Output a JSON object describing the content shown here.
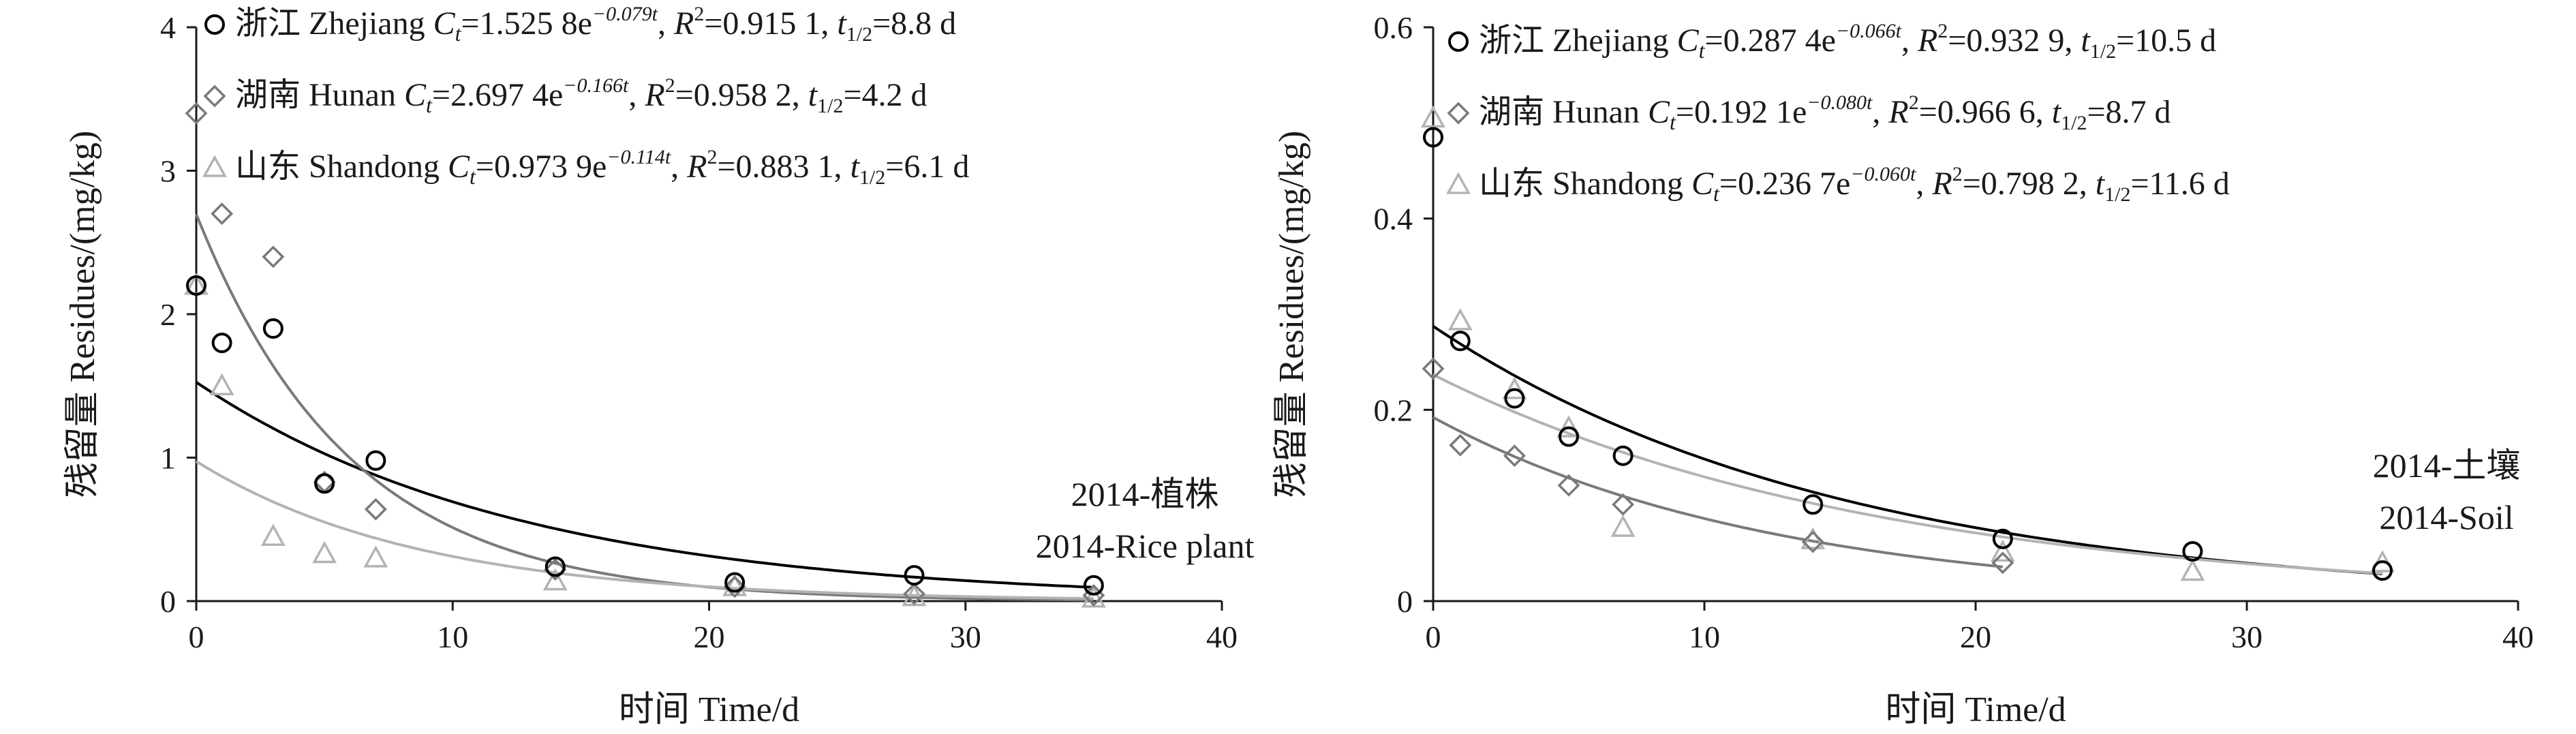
{
  "colors": {
    "zhejiang": "#000000",
    "hunan": "#7a7a7a",
    "shandong": "#b3b3b3",
    "axis": "#1a1a1a"
  },
  "chart_data": [
    {
      "type": "scatter",
      "annotation": [
        "2014-植株",
        "2014-Rice plant"
      ],
      "xlabel": "时间 Time/d",
      "ylabel": "残留量 Residues/(mg/kg)",
      "xlim": [
        0,
        40
      ],
      "ylim": [
        0,
        4
      ],
      "xticks": [
        "0",
        "10",
        "20",
        "30",
        "40"
      ],
      "yticks": [
        "0",
        "1",
        "2",
        "3",
        "4"
      ],
      "grid": false,
      "legend_position": "top-left",
      "series": [
        {
          "key": "zhejiang",
          "marker": "circle",
          "legend": {
            "name": "浙江 Zhejiang",
            "eq": "=1.525 8e",
            "exp": "−0.079t",
            "r2": "=0.915 1,",
            "half": "=8.8 d"
          },
          "fit": {
            "a": 1.5258,
            "k": 0.079
          },
          "x": [
            0,
            1,
            3,
            5,
            7,
            14,
            21,
            28,
            35
          ],
          "y": [
            2.2,
            1.8,
            1.9,
            0.82,
            0.98,
            0.24,
            0.13,
            0.18,
            0.11
          ]
        },
        {
          "key": "hunan",
          "marker": "diamond",
          "legend": {
            "name": "湖南 Hunan",
            "eq": "=2.697 4e",
            "exp": "−0.166t",
            "r2": "=0.958 2,",
            "half": "=4.2 d"
          },
          "fit": {
            "a": 2.6974,
            "k": 0.166
          },
          "x": [
            0,
            1,
            3,
            5,
            7,
            14,
            21,
            28,
            35
          ],
          "y": [
            3.4,
            2.7,
            2.4,
            0.83,
            0.64,
            0.22,
            0.1,
            0.05,
            0.04
          ]
        },
        {
          "key": "shandong",
          "marker": "triangle",
          "legend": {
            "name": "山东 Shandong",
            "eq": "=0.973 9e",
            "exp": "−0.114t",
            "r2": "=0.883 1,",
            "half": "=6.1 d"
          },
          "fit": {
            "a": 0.9739,
            "k": 0.114
          },
          "x": [
            0,
            1,
            3,
            5,
            7,
            14,
            21,
            28,
            35
          ],
          "y": [
            2.2,
            1.5,
            0.45,
            0.33,
            0.3,
            0.14,
            0.1,
            0.03,
            0.02
          ]
        }
      ]
    },
    {
      "type": "scatter",
      "annotation": [
        "2014-土壤",
        "2014-Soil"
      ],
      "xlabel": "时间 Time/d",
      "ylabel": "残留量 Residues/(mg/kg)",
      "xlim": [
        0,
        40
      ],
      "ylim": [
        0,
        0.6
      ],
      "xticks": [
        "0",
        "10",
        "20",
        "30",
        "40"
      ],
      "yticks": [
        "0",
        "0.2",
        "0.4",
        "0.6"
      ],
      "grid": false,
      "legend_position": "top-left",
      "series": [
        {
          "key": "zhejiang",
          "marker": "circle",
          "legend": {
            "name": "浙江 Zhejiang",
            "eq": "=0.287 4e",
            "exp": "−0.066t",
            "r2": "=0.932 9,",
            "half": "=10.5 d"
          },
          "fit": {
            "a": 0.2874,
            "k": 0.066
          },
          "x": [
            0,
            1,
            3,
            5,
            7,
            14,
            21,
            28,
            35
          ],
          "y": [
            0.485,
            0.272,
            0.212,
            0.172,
            0.152,
            0.101,
            0.065,
            0.052,
            0.032
          ]
        },
        {
          "key": "hunan",
          "marker": "diamond",
          "legend": {
            "name": "湖南 Hunan",
            "eq": "=0.192 1e",
            "exp": "−0.080t",
            "r2": "=0.966 6,",
            "half": "=8.7 d"
          },
          "fit": {
            "a": 0.1921,
            "k": 0.08
          },
          "x": [
            0,
            1,
            3,
            5,
            7,
            14,
            21
          ],
          "y": [
            0.243,
            0.163,
            0.152,
            0.121,
            0.101,
            0.062,
            0.04
          ]
        },
        {
          "key": "shandong",
          "marker": "triangle",
          "legend": {
            "name": "山东 Shandong",
            "eq": "=0.236 7e",
            "exp": "−0.060t",
            "r2": "=0.798 2,",
            "half": "=11.6 d"
          },
          "fit": {
            "a": 0.2367,
            "k": 0.06
          },
          "x": [
            0,
            1,
            3,
            5,
            7,
            14,
            21,
            28,
            35
          ],
          "y": [
            0.505,
            0.293,
            0.221,
            0.181,
            0.077,
            0.064,
            0.051,
            0.031,
            0.04
          ]
        }
      ]
    }
  ]
}
